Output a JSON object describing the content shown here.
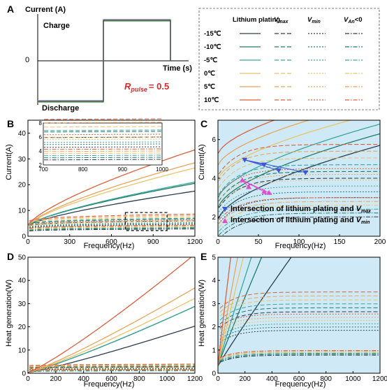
{
  "panels": {
    "a": "A",
    "b": "B",
    "c": "C",
    "d": "D",
    "e": "E"
  },
  "panel_a": {
    "ylabel": "Current (A)",
    "charge_label": "Charge",
    "discharge_label": "Discharge",
    "zero_label": "0",
    "xlabel": "Time (s)",
    "rpulse_symbol": "R",
    "rpulse_sub": "pulse",
    "rpulse_value": "= 0.5",
    "colors": [
      "#8e9bd0",
      "#f0a8a8",
      "#69b77e"
    ]
  },
  "legend": {
    "headers": {
      "plating": "Lithium plating",
      "vmax": "V",
      "vmax_sub": "max",
      "vmin": "V",
      "vmin_sub": "min",
      "van": "V",
      "van_sub": "An",
      "van_suffix": "<0"
    },
    "rows": [
      {
        "label": "-15℃",
        "color": "#2c3e50"
      },
      {
        "label": "-10℃",
        "color": "#1f7a6a"
      },
      {
        "label": "-5℃",
        "color": "#3aa59b"
      },
      {
        "label": "0℃",
        "color": "#e8c46a"
      },
      {
        "label": "5℃",
        "color": "#e8a55a"
      },
      {
        "label": "10℃",
        "color": "#d9603b"
      }
    ]
  },
  "chart_data": [
    {
      "id": "B",
      "type": "line",
      "xlabel": "Frequency(Hz)",
      "ylabel": "Current(A)",
      "xlim": [
        0,
        1200
      ],
      "ylim": [
        0,
        45
      ],
      "xticks": [
        "0",
        "300",
        "600",
        "900",
        "1200"
      ],
      "yticks": [
        "0",
        "10",
        "20",
        "30",
        "40"
      ],
      "plating_end": [
        17.5,
        20.5,
        21.0,
        26.5,
        28.5,
        33.5
      ],
      "vmax_end": [
        6.0,
        6.8,
        7.0,
        7.5,
        8.1,
        8.6
      ],
      "vmin_end": [
        4.6,
        5.0,
        5.3,
        5.7,
        6.0,
        6.4
      ],
      "van_end": [
        2.8,
        3.1,
        3.4,
        3.7,
        4.0,
        4.3
      ],
      "inset": {
        "xlim": [
          700,
          1000
        ],
        "ylim": [
          2,
          8
        ],
        "xticks": [
          "700",
          "800",
          "900",
          "1000"
        ],
        "yticks": [
          "2",
          "4",
          "6",
          "8"
        ]
      }
    },
    {
      "id": "C",
      "type": "line",
      "xlabel": "Frequency(Hz)",
      "ylabel": "Current(A)",
      "xlim": [
        0,
        200
      ],
      "ylim": [
        1,
        7
      ],
      "xticks": [
        "0",
        "50",
        "100",
        "150",
        "200"
      ],
      "yticks": [
        "2",
        "4",
        "6"
      ],
      "annotations": [
        "Intersection of lithium plating and ",
        "Intersection of lithium plating and "
      ],
      "annotation_symbols": [
        "V",
        "V"
      ],
      "annotation_subs": [
        "max",
        "min"
      ],
      "vmax_points": [
        [
          33,
          4.95
        ],
        [
          57,
          4.7
        ],
        [
          75,
          4.4
        ],
        [
          108,
          4.3
        ]
      ],
      "vmin_points": [
        [
          30,
          3.9
        ],
        [
          38,
          3.55
        ],
        [
          57,
          3.3
        ],
        [
          63,
          3.25
        ]
      ]
    },
    {
      "id": "D",
      "type": "line",
      "xlabel": "Frequency(Hz)",
      "ylabel": "Heat generation(W)",
      "xlim": [
        0,
        1200
      ],
      "ylim": [
        0,
        50
      ],
      "xticks": [
        "0",
        "200",
        "400",
        "600",
        "800",
        "1000",
        "1200"
      ],
      "yticks": [
        "0",
        "10",
        "20",
        "30",
        "40",
        "50"
      ]
    },
    {
      "id": "E",
      "type": "line",
      "xlabel": "Frequency(Hz)",
      "ylabel": "Heat generation(W)",
      "xlim": [
        0,
        1200
      ],
      "ylim": [
        0,
        5
      ],
      "xticks": [
        "0",
        "200",
        "400",
        "600",
        "800",
        "1000",
        "1200"
      ],
      "yticks": [
        "0",
        "1",
        "2",
        "3",
        "4",
        "5"
      ]
    }
  ],
  "colors": {
    "bg_highlight": "#cfeaf6",
    "vmax_marker": "#3f55d9",
    "vmin_marker": "#e04bd0"
  }
}
